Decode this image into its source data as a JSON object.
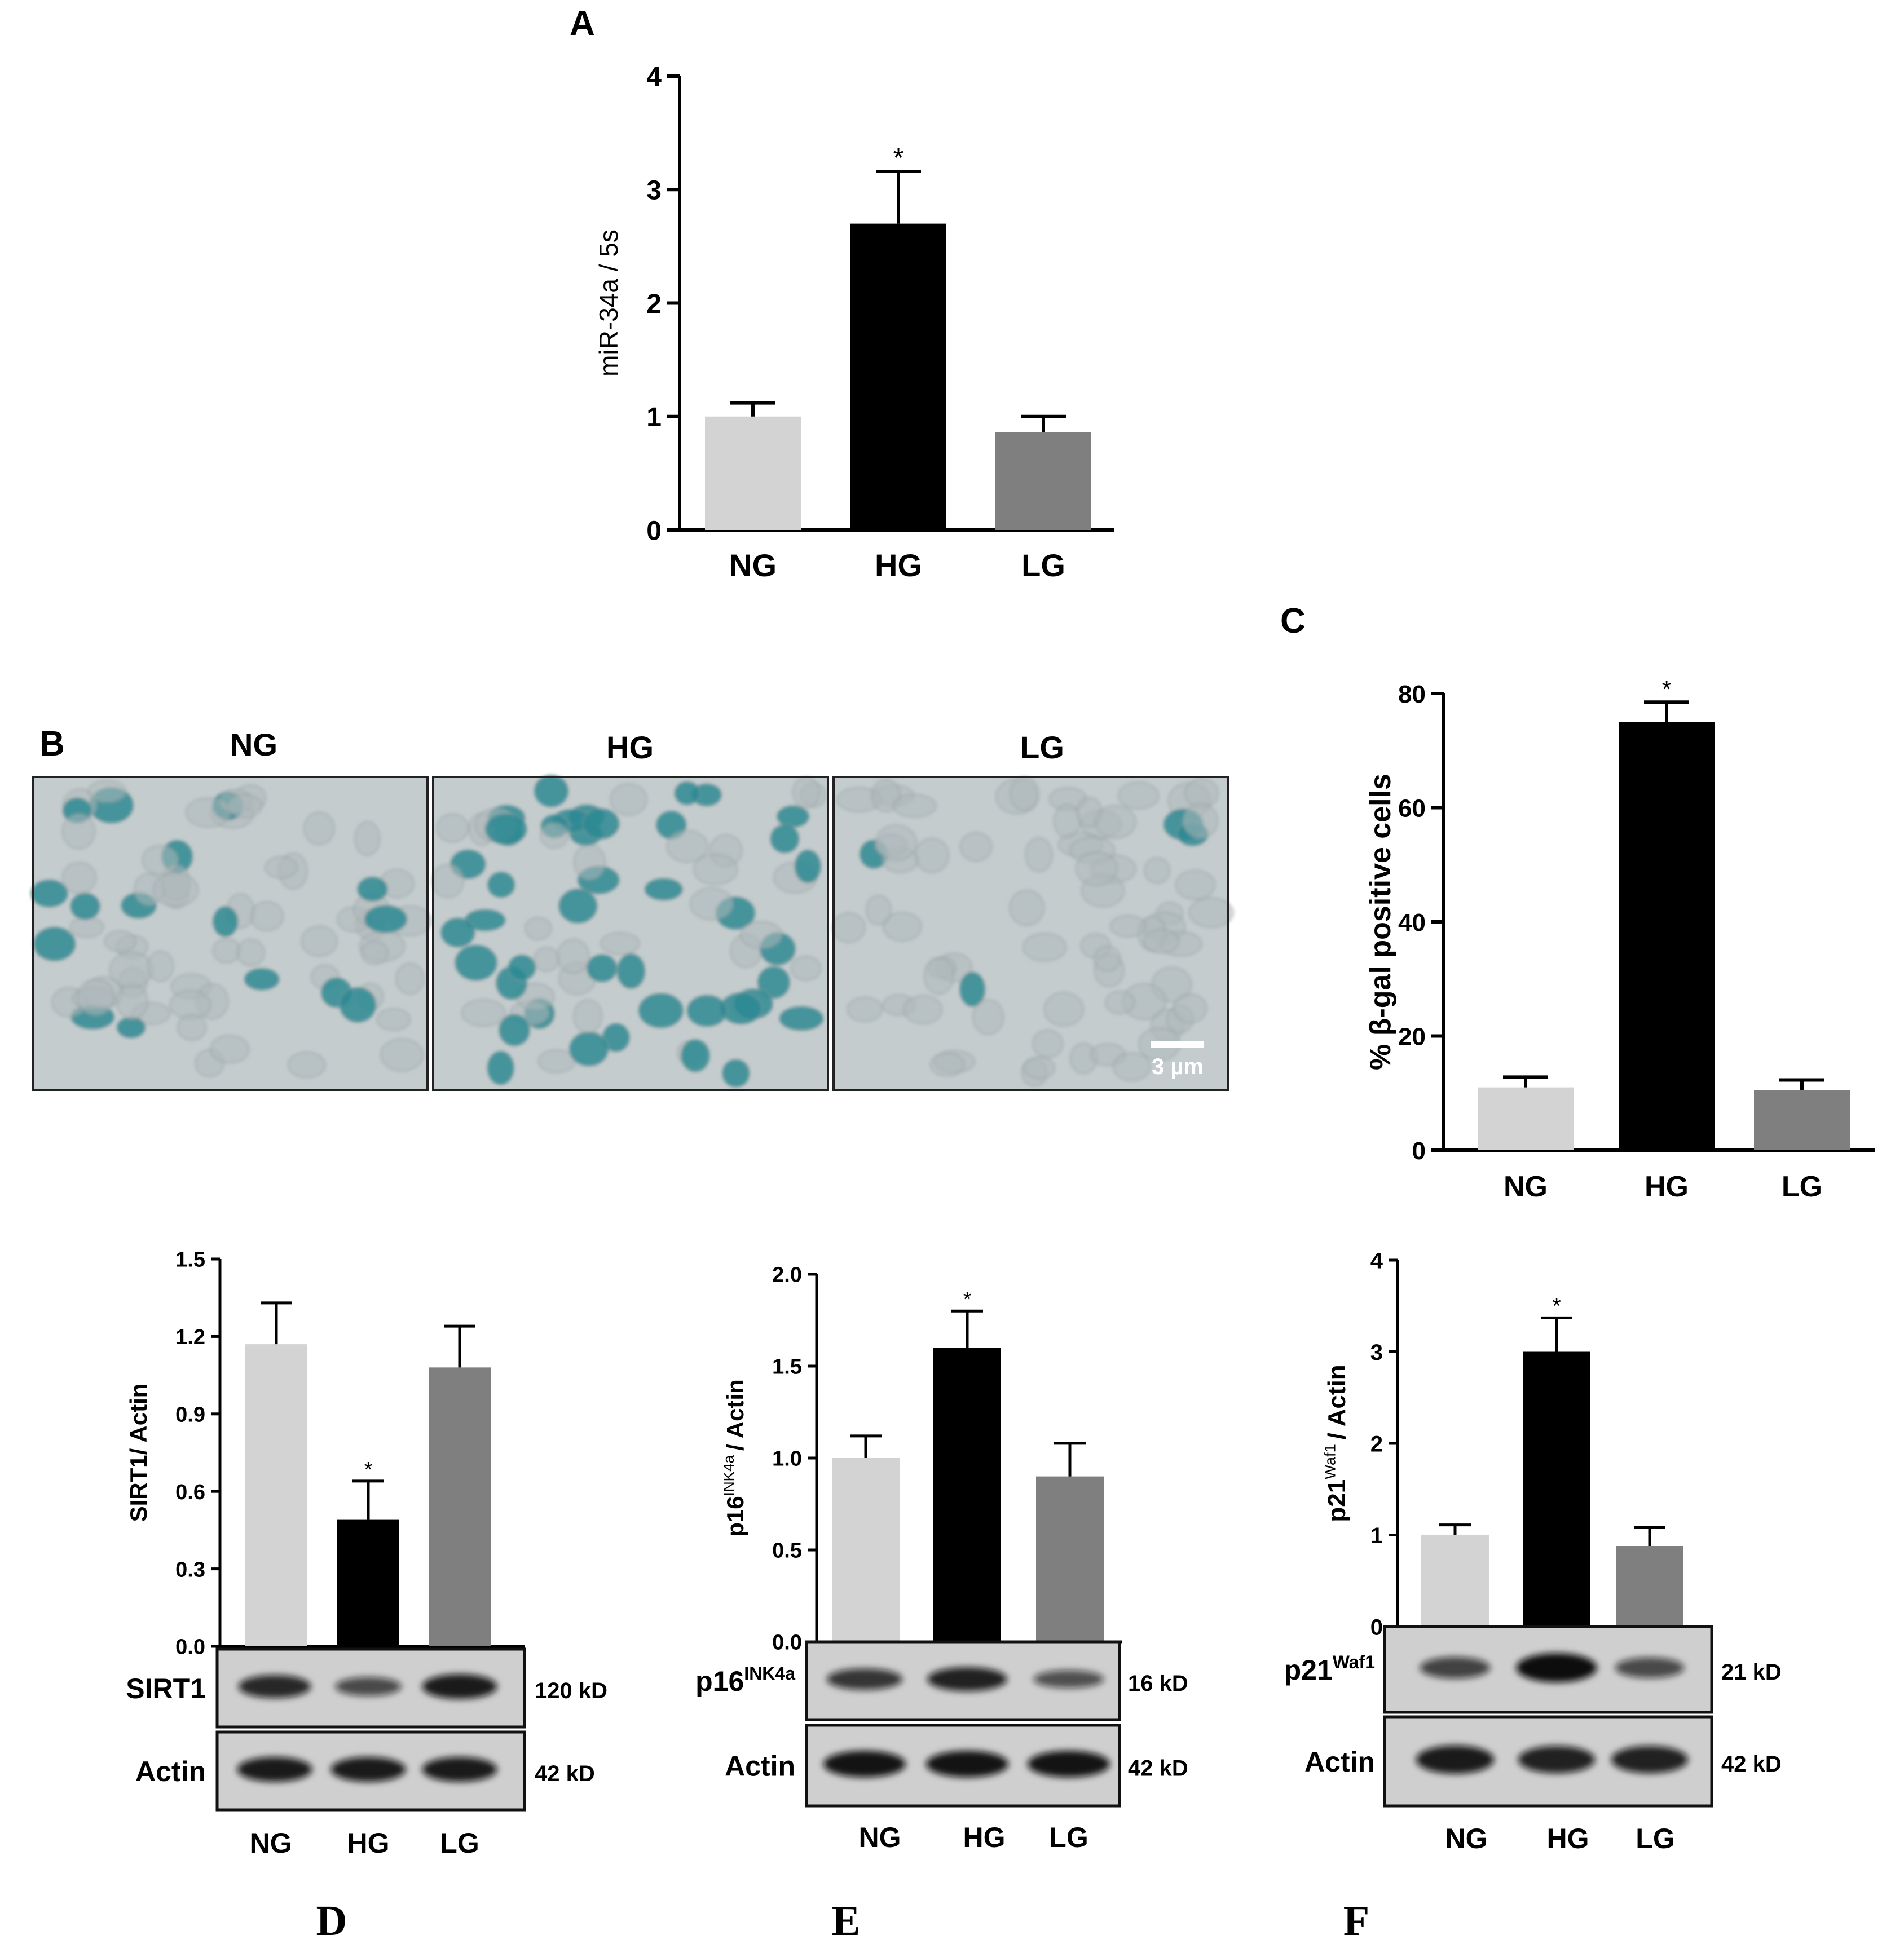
{
  "panel_labels": {
    "a": "A",
    "b": "B",
    "c": "C",
    "d": "D",
    "e": "E",
    "f": "F"
  },
  "colors": {
    "NG": "#d3d3d3",
    "HG": "#000000",
    "LG": "#7f7f7f",
    "cell_bg": "#c4ccce",
    "cell_blue": "#2d8a93"
  },
  "micrographs": {
    "labels": [
      "NG",
      "HG",
      "LG"
    ],
    "scale_bar": "3 µm",
    "blue_cell_density": [
      0.15,
      0.55,
      0.08
    ]
  },
  "blots": {
    "d": {
      "rows": [
        {
          "label": "SIRT1",
          "sup": "",
          "kd": "120 kD",
          "intensity": [
            0.8,
            0.55,
            0.9
          ]
        },
        {
          "label": "Actin",
          "sup": "",
          "kd": "42 kD",
          "intensity": [
            0.9,
            0.9,
            0.9
          ]
        }
      ]
    },
    "e": {
      "rows": [
        {
          "label": "p16",
          "sup": "INK4a",
          "kd": "16 kD",
          "intensity": [
            0.7,
            0.85,
            0.5
          ]
        },
        {
          "label": "Actin",
          "sup": "",
          "kd": "42 kD",
          "intensity": [
            0.95,
            0.95,
            0.95
          ]
        }
      ]
    },
    "f": {
      "rows": [
        {
          "label": "p21",
          "sup": "Waf1",
          "kd": "21 kD",
          "intensity": [
            0.6,
            1.0,
            0.55
          ]
        },
        {
          "label": "Actin",
          "sup": "",
          "kd": "42 kD",
          "intensity": [
            0.9,
            0.85,
            0.85
          ]
        }
      ]
    }
  },
  "chart_data": [
    {
      "id": "a",
      "type": "bar",
      "categories": [
        "NG",
        "HG",
        "LG"
      ],
      "values": [
        1.0,
        2.7,
        0.86
      ],
      "errors": [
        0.12,
        0.46,
        0.14
      ],
      "significance": [
        "",
        "*",
        ""
      ],
      "ylabel": "miR-34a / 5s",
      "ylabel_sup": "",
      "ylabel_suffix": "",
      "ylim": [
        0,
        4
      ],
      "yticks": [
        "0",
        "1",
        "2",
        "3",
        "4"
      ],
      "grid": false,
      "legend": "none"
    },
    {
      "id": "c",
      "type": "bar",
      "categories": [
        "NG",
        "HG",
        "LG"
      ],
      "values": [
        11,
        75,
        10.5
      ],
      "errors": [
        1.8,
        3.5,
        1.8
      ],
      "significance": [
        "",
        "*",
        ""
      ],
      "ylabel": "% β-gal positive cells",
      "ylabel_sup": "",
      "ylabel_suffix": "",
      "ylim": [
        0,
        80
      ],
      "yticks": [
        "0",
        "20",
        "40",
        "60",
        "80"
      ],
      "grid": false,
      "legend": "none"
    },
    {
      "id": "d",
      "type": "bar",
      "categories": [
        "NG",
        "HG",
        "LG"
      ],
      "values": [
        1.17,
        0.49,
        1.08
      ],
      "errors": [
        0.16,
        0.15,
        0.16
      ],
      "significance": [
        "",
        "*",
        ""
      ],
      "ylabel": "SIRT1/ Actin",
      "ylabel_sup": "",
      "ylabel_suffix": "",
      "ylim": [
        0,
        1.5
      ],
      "yticks": [
        "0.0",
        "0.3",
        "0.6",
        "0.9",
        "1.2",
        "1.5"
      ],
      "grid": false,
      "legend": "none"
    },
    {
      "id": "e",
      "type": "bar",
      "categories": [
        "NG",
        "HG",
        "LG"
      ],
      "values": [
        1.0,
        1.6,
        0.9
      ],
      "errors": [
        0.12,
        0.2,
        0.18
      ],
      "significance": [
        "",
        "*",
        ""
      ],
      "ylabel": "p16",
      "ylabel_sup": "INK4a",
      "ylabel_suffix": "/ Actin",
      "ylim": [
        0,
        2.0
      ],
      "yticks": [
        "0.0",
        "0.5",
        "1.0",
        "1.5",
        "2.0"
      ],
      "grid": false,
      "legend": "none"
    },
    {
      "id": "f",
      "type": "bar",
      "categories": [
        "NG",
        "HG",
        "LG"
      ],
      "values": [
        1.0,
        3.0,
        0.88
      ],
      "errors": [
        0.11,
        0.37,
        0.2
      ],
      "significance": [
        "",
        "*",
        ""
      ],
      "ylabel": "p21",
      "ylabel_sup": "Waf1",
      "ylabel_suffix": "/ Actin",
      "ylim": [
        0,
        4
      ],
      "yticks": [
        "0",
        "1",
        "2",
        "3",
        "4"
      ],
      "grid": false,
      "legend": "none"
    }
  ]
}
